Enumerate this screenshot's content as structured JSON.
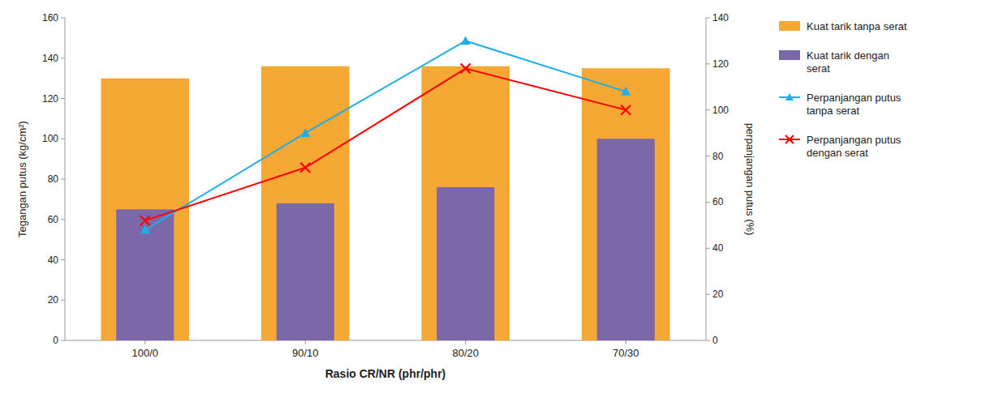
{
  "chart_data": {
    "type": "bar",
    "categories": [
      "100/0",
      "90/10",
      "80/20",
      "70/30"
    ],
    "xlabel": "Rasio CR/NR (phr/phr)",
    "ylabel": "Tegangan putus (kg/cm²)",
    "y2label": "perpanjangan putus (%)",
    "ylim": [
      0,
      160
    ],
    "yticks": [
      0,
      20,
      40,
      60,
      80,
      100,
      120,
      140,
      160
    ],
    "y2lim": [
      0,
      140
    ],
    "y2ticks": [
      0,
      20,
      40,
      60,
      80,
      100,
      120,
      140
    ],
    "grid": false,
    "legend": "right",
    "series": [
      {
        "name": "Kuat tarik tanpa serat",
        "type": "bar",
        "color": "#F5A833",
        "values": [
          130,
          136,
          136,
          135
        ]
      },
      {
        "name": "Kuat tarik dengan\nserat",
        "type": "bar",
        "color": "#7B68A8",
        "values": [
          65,
          68,
          76,
          100
        ]
      },
      {
        "name": "Perpanjangan putus\ntanpa serat",
        "type": "line",
        "axis": "y2",
        "color": "#1EAEE8",
        "marker": "triangle",
        "values": [
          48,
          90,
          130,
          108
        ]
      },
      {
        "name": "Perpanjangan putus\ndengan serat",
        "type": "line",
        "axis": "y2",
        "color": "#FF0000",
        "marker": "x",
        "values": [
          52,
          75,
          118,
          100
        ]
      }
    ]
  }
}
